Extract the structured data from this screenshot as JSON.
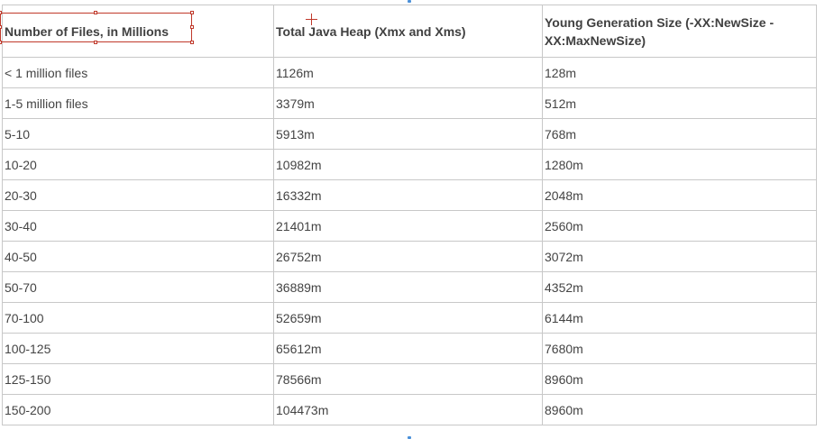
{
  "table": {
    "headers": [
      "Number of Files, in Millions",
      "Total Java Heap (Xmx and Xms)",
      "Young Generation Size (-XX:NewSize -XX:MaxNewSize)"
    ],
    "rows": [
      [
        "< 1 million files",
        "1126m",
        "128m"
      ],
      [
        "1-5 million files",
        "3379m",
        "512m"
      ],
      [
        "5-10",
        "5913m",
        "768m"
      ],
      [
        "10-20",
        "10982m",
        "1280m"
      ],
      [
        "20-30",
        "16332m",
        "2048m"
      ],
      [
        "30-40",
        "21401m",
        "2560m"
      ],
      [
        "40-50",
        "26752m",
        "3072m"
      ],
      [
        "50-70",
        "36889m",
        "4352m"
      ],
      [
        "70-100",
        "52659m",
        "6144m"
      ],
      [
        "100-125",
        "65612m",
        "7680m"
      ],
      [
        "125-150",
        "78566m",
        "8960m"
      ],
      [
        "150-200",
        "104473m",
        "8960m"
      ]
    ]
  },
  "colors": {
    "selection": "#c0392b",
    "border": "#c8c8c8",
    "text": "#444444"
  }
}
